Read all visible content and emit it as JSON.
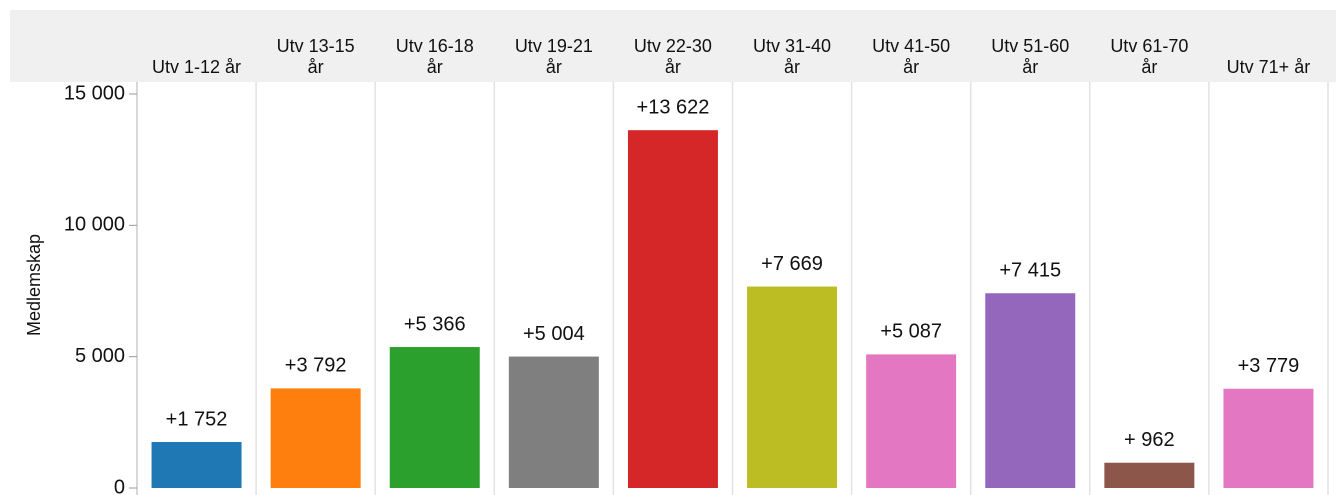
{
  "chart_data": {
    "type": "bar",
    "y_label": "Medlemskap",
    "categories": [
      "Utv 1-12 år",
      "Utv 13-15 år",
      "Utv 16-18 år",
      "Utv 19-21 år",
      "Utv 22-30 år",
      "Utv 31-40 år",
      "Utv 41-50 år",
      "Utv 51-60 år",
      "Utv 61-70 år",
      "Utv 71+ år"
    ],
    "values": [
      1752,
      3792,
      5366,
      5004,
      13622,
      7669,
      5087,
      7415,
      962,
      3779
    ],
    "value_labels": [
      "+1 752",
      "+3 792",
      "+5 366",
      "+5 004",
      "+13 622",
      "+7 669",
      "+5 087",
      "+7 415",
      "+ 962",
      "+3 779"
    ],
    "colors": [
      "#1f77b4",
      "#ff7f0e",
      "#2ca02c",
      "#7f7f7f",
      "#d62728",
      "#bcbd22",
      "#e377c2",
      "#9467bd",
      "#8c564b",
      "#e377c2"
    ],
    "ylim": [
      0,
      15000
    ],
    "yticks": [
      0,
      {
        "value": 5000,
        "label": "5 000"
      },
      {
        "value": 10000,
        "label": "10 000"
      },
      {
        "value": 15000,
        "label": "15 000"
      }
    ]
  }
}
